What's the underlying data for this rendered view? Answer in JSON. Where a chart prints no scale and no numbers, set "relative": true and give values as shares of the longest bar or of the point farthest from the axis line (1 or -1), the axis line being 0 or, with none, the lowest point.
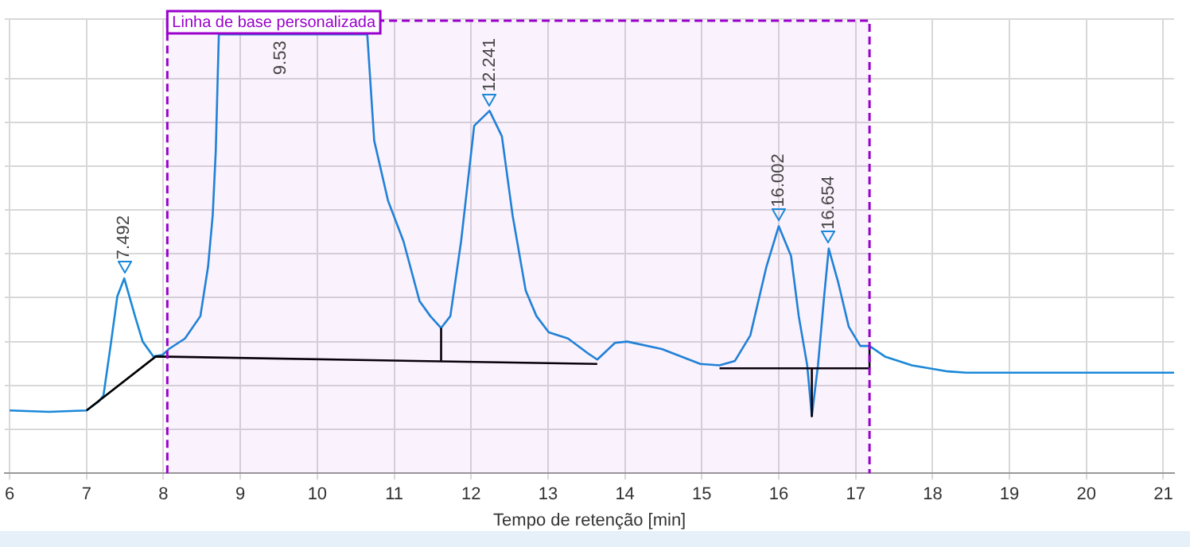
{
  "chart_data": {
    "type": "line",
    "relative": true,
    "xlabel": "Tempo de retenção [min]",
    "xlim": [
      5.94,
      21.14
    ],
    "xticks": [
      6,
      7,
      8,
      9,
      10,
      11,
      12,
      13,
      14,
      15,
      16,
      17,
      18,
      19,
      20,
      21
    ],
    "grid": true,
    "marker": "none",
    "line_style": "solid",
    "series": [
      {
        "color": "#1a88d8",
        "x": [
          6.0,
          6.51,
          7.0,
          7.16,
          7.22,
          7.32,
          7.4,
          7.49,
          7.63,
          7.73,
          7.87,
          7.99,
          8.07,
          8.28,
          8.48,
          8.58,
          8.64,
          8.68,
          8.72,
          10.65,
          10.74,
          10.92,
          11.12,
          11.33,
          11.47,
          11.61,
          11.73,
          11.87,
          12.04,
          12.24,
          12.4,
          12.54,
          12.71,
          12.85,
          13.01,
          13.26,
          13.52,
          13.64,
          13.87,
          14.03,
          14.48,
          14.98,
          15.23,
          15.43,
          15.63,
          15.84,
          16.0,
          16.16,
          16.26,
          16.37,
          16.43,
          16.51,
          16.59,
          16.65,
          16.77,
          16.91,
          17.06,
          17.18,
          17.38,
          17.73,
          18.2,
          18.44,
          19.76,
          21.14
        ],
        "values": [
          0.143,
          0.14,
          0.143,
          0.164,
          0.177,
          0.3,
          0.403,
          0.444,
          0.358,
          0.3,
          0.266,
          0.27,
          0.283,
          0.307,
          0.358,
          0.471,
          0.587,
          0.734,
          1.0,
          1.0,
          0.758,
          0.621,
          0.529,
          0.392,
          0.358,
          0.331,
          0.358,
          0.529,
          0.792,
          0.826,
          0.768,
          0.587,
          0.416,
          0.358,
          0.321,
          0.307,
          0.273,
          0.259,
          0.297,
          0.3,
          0.283,
          0.249,
          0.246,
          0.256,
          0.314,
          0.471,
          0.563,
          0.495,
          0.358,
          0.246,
          0.13,
          0.246,
          0.403,
          0.512,
          0.437,
          0.334,
          0.29,
          0.29,
          0.266,
          0.246,
          0.232,
          0.229,
          0.229,
          0.229
        ]
      },
      {
        "type": "line",
        "color": "#000000",
        "x": [
          7.0,
          7.9,
          13.64
        ],
        "values": [
          0.143,
          0.266,
          0.249
        ]
      },
      {
        "type": "line",
        "color": "#000000",
        "x": [
          11.61,
          11.61
        ],
        "values": [
          0.256,
          0.331
        ]
      },
      {
        "type": "line",
        "color": "#000000",
        "x": [
          15.23,
          17.18,
          17.18
        ],
        "values": [
          0.239,
          0.239,
          0.287
        ]
      },
      {
        "type": "line",
        "color": "#000000",
        "x": [
          16.43,
          16.43
        ],
        "values": [
          0.239,
          0.13
        ]
      }
    ],
    "bands": [
      {
        "axis": "x",
        "from": 8.05,
        "to": 17.18,
        "label": "Linha de base personalizada",
        "color": "#9900cc"
      }
    ],
    "annotations": [
      {
        "text": "7.492",
        "x": 7.49,
        "y": 0.444
      },
      {
        "text": "9.53",
        "x": 9.53,
        "y": 1.0
      },
      {
        "text": "12.241",
        "x": 12.24,
        "y": 0.826
      },
      {
        "text": "16.002",
        "x": 16.0,
        "y": 0.563
      },
      {
        "text": "16.654",
        "x": 16.65,
        "y": 0.512
      }
    ]
  }
}
